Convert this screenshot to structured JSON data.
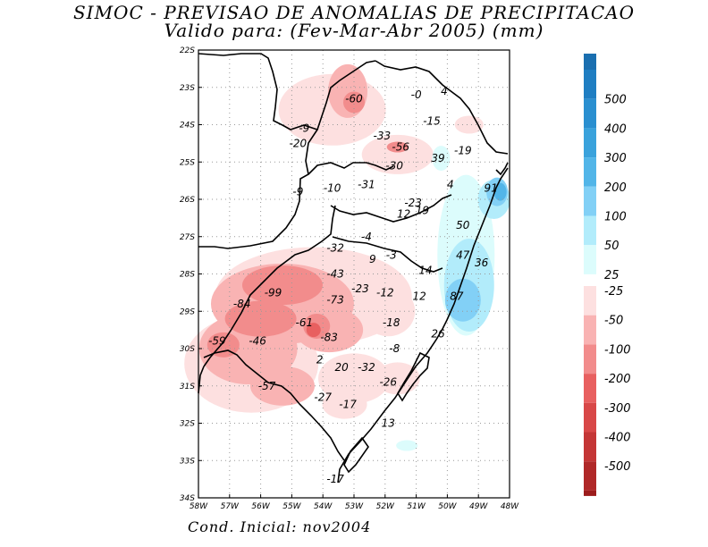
{
  "title": {
    "line1": "SIMOC - PREVISAO DE ANOMALIAS DE PRECIPITACAO",
    "line2": "Valido para: (Fev-Mar-Abr 2005) (mm)"
  },
  "footer": "Cond. Inicial: nov2004",
  "axes": {
    "lat_ticks": [
      "22S",
      "23S",
      "24S",
      "25S",
      "26S",
      "27S",
      "28S",
      "29S",
      "30S",
      "31S",
      "32S",
      "33S",
      "34S"
    ],
    "lon_ticks": [
      "58W",
      "57W",
      "56W",
      "55W",
      "54W",
      "53W",
      "52W",
      "51W",
      "50W",
      "49W",
      "48W"
    ]
  },
  "colorbar": {
    "positive": [
      {
        "label": "500",
        "color": "#1f7ec2"
      },
      {
        "label": "400",
        "color": "#2a8fd0"
      },
      {
        "label": "300",
        "color": "#3aa2dc"
      },
      {
        "label": "200",
        "color": "#52b5e8"
      },
      {
        "label": "100",
        "color": "#82d0f6"
      },
      {
        "label": "50",
        "color": "#b2ecfb"
      },
      {
        "label": "25",
        "color": "#dcfcfc"
      }
    ],
    "positive_top_color": "#1a6fb0",
    "negative": [
      {
        "label": "-25",
        "color": "#fde0e0"
      },
      {
        "label": "-50",
        "color": "#f9b3b3"
      },
      {
        "label": "-100",
        "color": "#f28c8c"
      },
      {
        "label": "-200",
        "color": "#e86060"
      },
      {
        "label": "-300",
        "color": "#d84848"
      },
      {
        "label": "-400",
        "color": "#c43636"
      },
      {
        "label": "-500",
        "color": "#b02828"
      }
    ],
    "negative_bottom_color": "#9c1c1c"
  },
  "chart_data": {
    "type": "heatmap",
    "map_extent": {
      "lon": [
        -58,
        -48
      ],
      "lat": [
        -34,
        -22
      ]
    },
    "grid": "dotted",
    "values": [
      {
        "label": "-60",
        "lon": -53.0,
        "lat": -23.3
      },
      {
        "label": "-0",
        "lon": -51.0,
        "lat": -23.2
      },
      {
        "label": "4",
        "lon": -50.1,
        "lat": -23.1
      },
      {
        "label": "-15",
        "lon": -50.5,
        "lat": -23.9
      },
      {
        "label": "-9",
        "lon": -54.6,
        "lat": -24.1
      },
      {
        "label": "-33",
        "lon": -52.1,
        "lat": -24.3
      },
      {
        "label": "-56",
        "lon": -51.5,
        "lat": -24.6
      },
      {
        "label": "-19",
        "lon": -49.5,
        "lat": -24.7
      },
      {
        "label": "-20",
        "lon": -54.8,
        "lat": -24.5
      },
      {
        "label": "39",
        "lon": -50.3,
        "lat": -24.9
      },
      {
        "label": "-30",
        "lon": -51.7,
        "lat": -25.1
      },
      {
        "label": "4",
        "lon": -49.9,
        "lat": -25.6
      },
      {
        "label": "-9",
        "lon": -54.8,
        "lat": -25.8
      },
      {
        "label": "-10",
        "lon": -53.7,
        "lat": -25.7
      },
      {
        "label": "-31",
        "lon": -52.6,
        "lat": -25.6
      },
      {
        "label": "91",
        "lon": -48.6,
        "lat": -25.7
      },
      {
        "label": "-23",
        "lon": -51.1,
        "lat": -26.1
      },
      {
        "label": "19",
        "lon": -50.8,
        "lat": -26.3
      },
      {
        "label": "12",
        "lon": -51.4,
        "lat": -26.4
      },
      {
        "label": "50",
        "lon": -49.5,
        "lat": -26.7
      },
      {
        "label": "-4",
        "lon": -52.6,
        "lat": -27.0
      },
      {
        "label": "-32",
        "lon": -53.6,
        "lat": -27.3
      },
      {
        "label": "9",
        "lon": -52.4,
        "lat": -27.6
      },
      {
        "label": "-3",
        "lon": -51.8,
        "lat": -27.5
      },
      {
        "label": "47",
        "lon": -49.5,
        "lat": -27.5
      },
      {
        "label": "36",
        "lon": -48.9,
        "lat": -27.7
      },
      {
        "label": "14",
        "lon": -50.7,
        "lat": -27.9
      },
      {
        "label": "-43",
        "lon": -53.6,
        "lat": -28.0
      },
      {
        "label": "-99",
        "lon": -55.6,
        "lat": -28.5
      },
      {
        "label": "-73",
        "lon": -53.6,
        "lat": -28.7
      },
      {
        "label": "-23",
        "lon": -52.8,
        "lat": -28.4
      },
      {
        "label": "-12",
        "lon": -52.0,
        "lat": -28.5
      },
      {
        "label": "12",
        "lon": -50.9,
        "lat": -28.6
      },
      {
        "label": "87",
        "lon": -49.7,
        "lat": -28.6
      },
      {
        "label": "-84",
        "lon": -56.6,
        "lat": -28.8
      },
      {
        "label": "-61",
        "lon": -54.6,
        "lat": -29.3
      },
      {
        "label": "-18",
        "lon": -51.8,
        "lat": -29.3
      },
      {
        "label": "26",
        "lon": -50.3,
        "lat": -29.6
      },
      {
        "label": "-59",
        "lon": -57.4,
        "lat": -29.8
      },
      {
        "label": "-46",
        "lon": -56.1,
        "lat": -29.8
      },
      {
        "label": "-83",
        "lon": -53.8,
        "lat": -29.7
      },
      {
        "label": "-8",
        "lon": -51.7,
        "lat": -30.0
      },
      {
        "label": "2",
        "lon": -54.1,
        "lat": -30.3
      },
      {
        "label": "20",
        "lon": -53.4,
        "lat": -30.5
      },
      {
        "label": "-32",
        "lon": -52.6,
        "lat": -30.5
      },
      {
        "label": "-57",
        "lon": -55.8,
        "lat": -31.0
      },
      {
        "label": "-26",
        "lon": -51.9,
        "lat": -30.9
      },
      {
        "label": "-27",
        "lon": -54.0,
        "lat": -31.3
      },
      {
        "label": "-17",
        "lon": -53.2,
        "lat": -31.5
      },
      {
        "label": "13",
        "lon": -51.9,
        "lat": -32.0
      },
      {
        "label": "-17",
        "lon": -53.6,
        "lat": -33.5
      }
    ]
  }
}
